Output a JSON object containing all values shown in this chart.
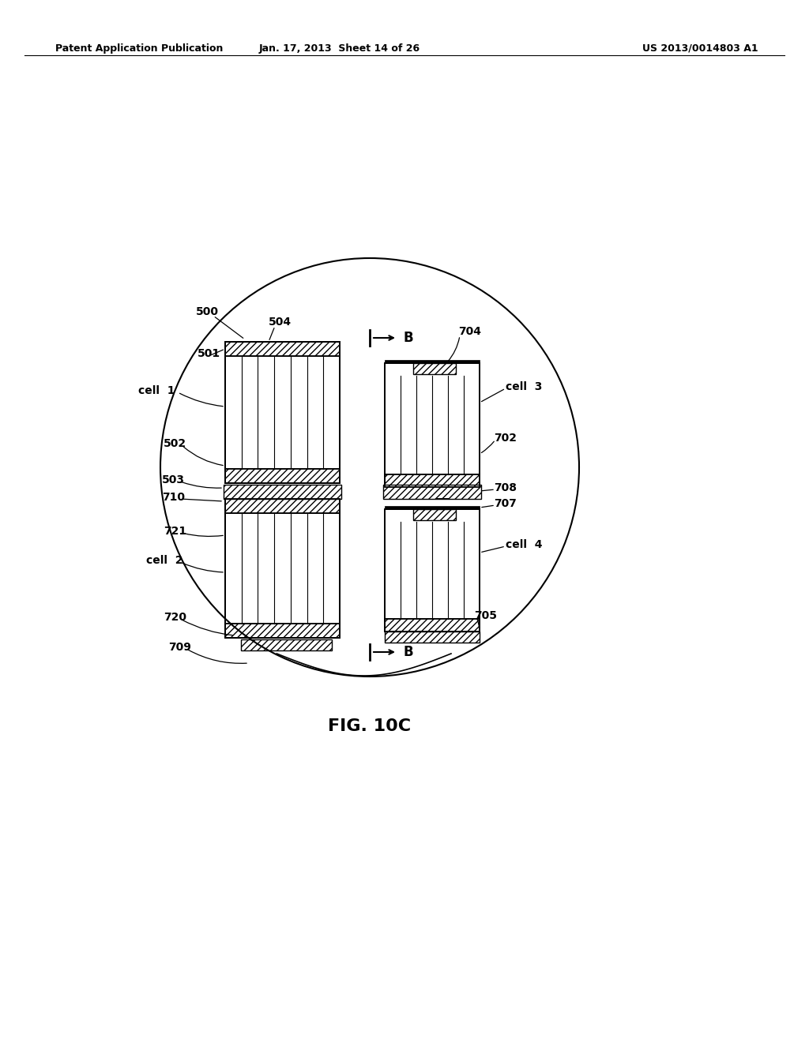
{
  "bg_color": "#ffffff",
  "header_left": "Patent Application Publication",
  "header_center": "Jan. 17, 2013  Sheet 14 of 26",
  "header_right": "US 2013/0014803 A1",
  "figure_label": "FIG. 10C",
  "header_fontsize": 9,
  "fig_label_fontsize": 16,
  "label_fontsize": 9
}
